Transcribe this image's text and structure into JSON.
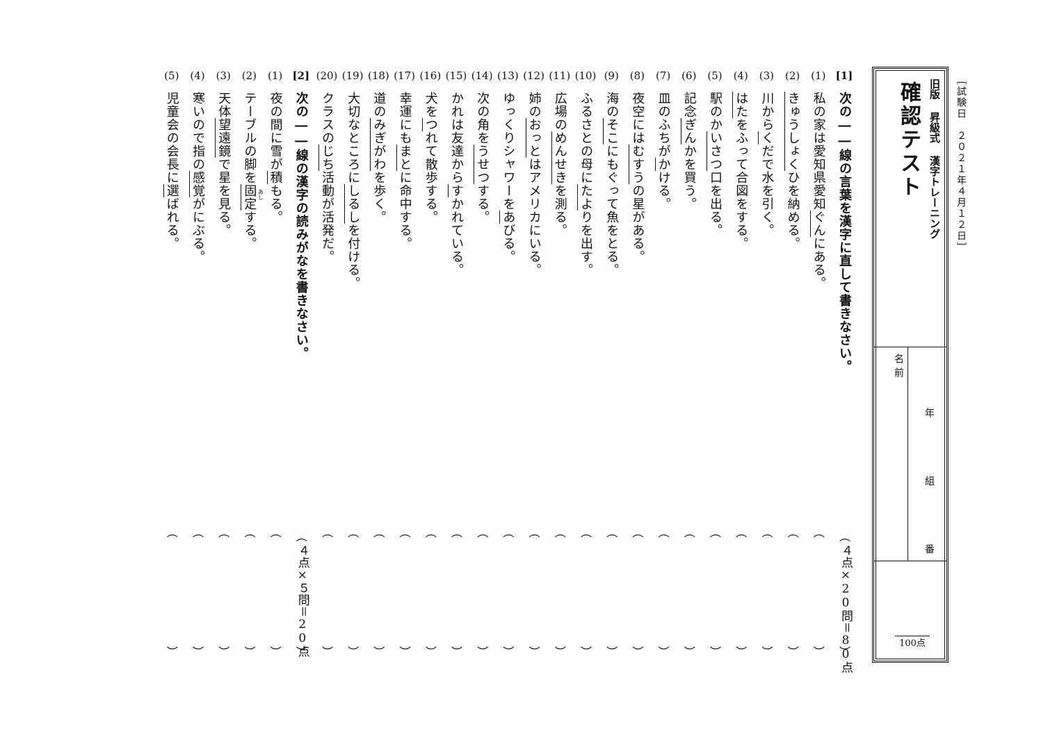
{
  "exam_date": "［試験日　２０２１年４月１２日］",
  "header": {
    "series": "旧版 昇級式 漢字トレーニング",
    "title": "確認テスト",
    "name_label": "名前",
    "year_label": "年",
    "class_label": "組",
    "number_label": "番",
    "score_total": "100点"
  },
  "section1": {
    "num": "[1]",
    "instruction": "次の――線の言葉を漢字に直して書きなさい。",
    "points": "４点×20問＝80点",
    "questions": [
      {
        "num": "(1)",
        "pre": "私の家は愛知県愛知",
        "ul": "ぐん",
        "post": "にある。"
      },
      {
        "num": "(2)",
        "pre": "",
        "ul": "きゅうしょく",
        "post": "ひを納める。"
      },
      {
        "num": "(3)",
        "pre": "川から",
        "ul": "く",
        "post": "だで水を引く。"
      },
      {
        "num": "(4)",
        "pre": "",
        "ul": "はた",
        "post": "をふって合図をする。"
      },
      {
        "num": "(5)",
        "pre": "駅のか",
        "ul": "いさつ",
        "post": "口を出る。"
      },
      {
        "num": "(6)",
        "pre": "記念",
        "ul": "ぎん",
        "post": "かを買う。"
      },
      {
        "num": "(7)",
        "pre": "皿のふちが",
        "ul": "か",
        "post": "ける。"
      },
      {
        "num": "(8)",
        "pre": "夜空には",
        "ul": "むすう",
        "post": "の星がある。"
      },
      {
        "num": "(9)",
        "pre": "海の",
        "ul": "そこ",
        "post": "にもぐって魚をとる。"
      },
      {
        "num": "(10)",
        "pre": "ふるさとの母に",
        "ul": "たよ",
        "post": "りを出す。"
      },
      {
        "num": "(11)",
        "pre": "広場の",
        "ul": "めんせき",
        "post": "を測る。"
      },
      {
        "num": "(12)",
        "pre": "姉の",
        "ul": "おっと",
        "post": "はアメリカにいる。"
      },
      {
        "num": "(13)",
        "pre": "ゆっくりシャワーを",
        "ul": "あ",
        "post": "びる。"
      },
      {
        "num": "(14)",
        "pre": "次の角を",
        "ul": "うせつ",
        "post": "する。"
      },
      {
        "num": "(15)",
        "pre": "かれは友達から",
        "ul": "す",
        "post": "かれている。"
      },
      {
        "num": "(16)",
        "pre": "犬を",
        "ul": "つ",
        "post": "れて散歩する。"
      },
      {
        "num": "(17)",
        "pre": "幸運にも",
        "ul": "まと",
        "post": "に命中する。"
      },
      {
        "num": "(18)",
        "pre": "道の",
        "ul": "みぎがわ",
        "post": "を歩く。"
      },
      {
        "num": "(19)",
        "pre": "大切なところに",
        "ul": "しるし",
        "post": "を付ける。"
      },
      {
        "num": "(20)",
        "pre": "クラスの",
        "ul": "じち",
        "post": "活動が活発だ。"
      }
    ]
  },
  "section2": {
    "num": "[2]",
    "instruction": "次の――線の漢字の読みがなを書きなさい。",
    "points": "４点×５問＝20点",
    "questions": [
      {
        "num": "(1)",
        "pre": "夜の間に雪が",
        "ul": "積",
        "post": "もる。"
      },
      {
        "num": "(2)",
        "pre": "テーブルの脚を",
        "ul": "固定",
        "post": "する。"
      },
      {
        "num": "(3)",
        "pre": "天体",
        "ul": "望遠鏡",
        "post": "で星を見る。"
      },
      {
        "num": "(4)",
        "pre": "寒いので指の",
        "ul": "感覚",
        "post": "がにぶる。"
      },
      {
        "num": "(5)",
        "pre": "児童会の会長に",
        "ul": "選",
        "post": "ばれる。"
      }
    ]
  },
  "furigana_note": "あし",
  "brackets": {
    "open": "︵",
    "close": "︶"
  }
}
